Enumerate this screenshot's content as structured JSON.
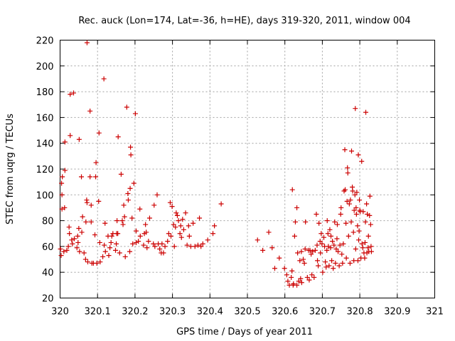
{
  "chart_data": {
    "type": "scatter",
    "title": "Rec. auck (Lon=174, Lat=-36, h=HE), days 319-320, 2011, window 004",
    "xlabel": "GPS time / Days of year 2011",
    "ylabel": "STEC from uqrg / TECUs",
    "xlim": [
      320,
      321
    ],
    "ylim": [
      20,
      220
    ],
    "xticks": [
      320,
      320.1,
      320.2,
      320.3,
      320.4,
      320.5,
      320.6,
      320.7,
      320.8,
      320.9,
      321
    ],
    "xtick_labels": [
      "320",
      "320.1",
      "320.2",
      "320.3",
      "320.4",
      "320.5",
      "320.6",
      "320.7",
      "320.8",
      "320.9",
      "321"
    ],
    "yticks": [
      20,
      40,
      60,
      80,
      100,
      120,
      140,
      160,
      180,
      200,
      220
    ],
    "ytick_labels": [
      "20",
      "40",
      "60",
      "80",
      "100",
      "120",
      "140",
      "160",
      "180",
      "200",
      "220"
    ],
    "grid": true,
    "marker": "+",
    "color": "#cc0000",
    "series": [
      {
        "points": [
          [
            320.001,
            58
          ],
          [
            320.003,
            53
          ],
          [
            320.005,
            100
          ],
          [
            320.004,
            109
          ],
          [
            320.006,
            114
          ],
          [
            320.005,
            89
          ],
          [
            320.01,
            56
          ],
          [
            320.012,
            90
          ],
          [
            320.013,
            141
          ],
          [
            320.013,
            119
          ],
          [
            320.018,
            57
          ],
          [
            320.022,
            60
          ],
          [
            320.024,
            75
          ],
          [
            320.025,
            70
          ],
          [
            320.027,
            146
          ],
          [
            320.027,
            178
          ],
          [
            320.031,
            65
          ],
          [
            320.033,
            62
          ],
          [
            320.036,
            179
          ],
          [
            320.038,
            66
          ],
          [
            320.045,
            59
          ],
          [
            320.047,
            68
          ],
          [
            320.048,
            63
          ],
          [
            320.05,
            74
          ],
          [
            320.051,
            143
          ],
          [
            320.052,
            56
          ],
          [
            320.057,
            114
          ],
          [
            320.058,
            71
          ],
          [
            320.06,
            83
          ],
          [
            320.064,
            55
          ],
          [
            320.068,
            50
          ],
          [
            320.069,
            79
          ],
          [
            320.071,
            96
          ],
          [
            320.072,
            94
          ],
          [
            320.072,
            218
          ],
          [
            320.074,
            48
          ],
          [
            320.08,
            114
          ],
          [
            320.08,
            165
          ],
          [
            320.083,
            79
          ],
          [
            320.083,
            92
          ],
          [
            320.085,
            47
          ],
          [
            320.089,
            47
          ],
          [
            320.093,
            69
          ],
          [
            320.095,
            114
          ],
          [
            320.096,
            125
          ],
          [
            320.098,
            47
          ],
          [
            320.103,
            95
          ],
          [
            320.104,
            148
          ],
          [
            320.106,
            63
          ],
          [
            320.107,
            48
          ],
          [
            320.114,
            52
          ],
          [
            320.117,
            190
          ],
          [
            320.118,
            61
          ],
          [
            320.12,
            78
          ],
          [
            320.121,
            56
          ],
          [
            320.128,
            68
          ],
          [
            320.13,
            53
          ],
          [
            320.133,
            59
          ],
          [
            320.136,
            63
          ],
          [
            320.138,
            68
          ],
          [
            320.141,
            70
          ],
          [
            320.148,
            57
          ],
          [
            320.15,
            62
          ],
          [
            320.151,
            70
          ],
          [
            320.152,
            80
          ],
          [
            320.154,
            70
          ],
          [
            320.155,
            145
          ],
          [
            320.159,
            55
          ],
          [
            320.163,
            116
          ],
          [
            320.166,
            80
          ],
          [
            320.168,
            77
          ],
          [
            320.17,
            92
          ],
          [
            320.172,
            83
          ],
          [
            320.174,
            52
          ],
          [
            320.178,
            168
          ],
          [
            320.181,
            101
          ],
          [
            320.182,
            96
          ],
          [
            320.186,
            56
          ],
          [
            320.187,
            105
          ],
          [
            320.188,
            137
          ],
          [
            320.189,
            131
          ],
          [
            320.192,
            82
          ],
          [
            320.194,
            62
          ],
          [
            320.197,
            109
          ],
          [
            320.201,
            163
          ],
          [
            320.203,
            72
          ],
          [
            320.203,
            63
          ],
          [
            320.209,
            64
          ],
          [
            320.213,
            89
          ],
          [
            320.214,
            68
          ],
          [
            320.223,
            61
          ],
          [
            320.225,
            70
          ],
          [
            320.228,
            77
          ],
          [
            320.23,
            71
          ],
          [
            320.232,
            59
          ],
          [
            320.236,
            64
          ],
          [
            320.239,
            82
          ],
          [
            320.249,
            62
          ],
          [
            320.251,
            92
          ],
          [
            320.253,
            60
          ],
          [
            320.259,
            100
          ],
          [
            320.262,
            62
          ],
          [
            320.266,
            58
          ],
          [
            320.27,
            55
          ],
          [
            320.272,
            62
          ],
          [
            320.276,
            55
          ],
          [
            320.28,
            60
          ],
          [
            320.287,
            64
          ],
          [
            320.29,
            70
          ],
          [
            320.294,
            94
          ],
          [
            320.296,
            68
          ],
          [
            320.299,
            91
          ],
          [
            320.303,
            77
          ],
          [
            320.305,
            60
          ],
          [
            320.308,
            75
          ],
          [
            320.31,
            86
          ],
          [
            320.313,
            84
          ],
          [
            320.316,
            80
          ],
          [
            320.32,
            70
          ],
          [
            320.322,
            76
          ],
          [
            320.324,
            67
          ],
          [
            320.327,
            81
          ],
          [
            320.33,
            73
          ],
          [
            320.335,
            86
          ],
          [
            320.339,
            61
          ],
          [
            320.343,
            76
          ],
          [
            320.345,
            68
          ],
          [
            320.349,
            60
          ],
          [
            320.355,
            78
          ],
          [
            320.36,
            60
          ],
          [
            320.368,
            61
          ],
          [
            320.372,
            82
          ],
          [
            320.376,
            60
          ],
          [
            320.381,
            62
          ],
          [
            320.394,
            65
          ],
          [
            320.408,
            70
          ],
          [
            320.412,
            76
          ],
          [
            320.43,
            93
          ],
          [
            320.527,
            65
          ],
          [
            320.541,
            57
          ],
          [
            320.557,
            71
          ],
          [
            320.566,
            59
          ],
          [
            320.573,
            43
          ],
          [
            320.585,
            51
          ],
          [
            320.599,
            43
          ],
          [
            320.605,
            38
          ],
          [
            320.608,
            33
          ],
          [
            320.612,
            30
          ],
          [
            320.617,
            36
          ],
          [
            320.619,
            41
          ],
          [
            320.62,
            104
          ],
          [
            320.622,
            30
          ],
          [
            320.623,
            31
          ],
          [
            320.626,
            68
          ],
          [
            320.628,
            79
          ],
          [
            320.632,
            90
          ],
          [
            320.632,
            30
          ],
          [
            320.634,
            55
          ],
          [
            320.637,
            33
          ],
          [
            320.64,
            49
          ],
          [
            320.642,
            35
          ],
          [
            320.644,
            56
          ],
          [
            320.645,
            32
          ],
          [
            320.649,
            50
          ],
          [
            320.652,
            47
          ],
          [
            320.654,
            58
          ],
          [
            320.655,
            79
          ],
          [
            320.66,
            36
          ],
          [
            320.663,
            57
          ],
          [
            320.665,
            34
          ],
          [
            320.667,
            57
          ],
          [
            320.67,
            54
          ],
          [
            320.672,
            38
          ],
          [
            320.674,
            56
          ],
          [
            320.678,
            36
          ],
          [
            320.681,
            57
          ],
          [
            320.684,
            85
          ],
          [
            320.686,
            61
          ],
          [
            320.687,
            49
          ],
          [
            320.689,
            45
          ],
          [
            320.691,
            78
          ],
          [
            320.694,
            64
          ],
          [
            320.695,
            55
          ],
          [
            320.697,
            70
          ],
          [
            320.699,
            62
          ],
          [
            320.701,
            40
          ],
          [
            320.704,
            67
          ],
          [
            320.706,
            60
          ],
          [
            320.708,
            48
          ],
          [
            320.71,
            44
          ],
          [
            320.712,
            57
          ],
          [
            320.713,
            80
          ],
          [
            320.715,
            70
          ],
          [
            320.716,
            60
          ],
          [
            320.718,
            45
          ],
          [
            320.72,
            73
          ],
          [
            320.722,
            59
          ],
          [
            320.723,
            68
          ],
          [
            320.725,
            49
          ],
          [
            320.727,
            64
          ],
          [
            320.729,
            43
          ],
          [
            320.731,
            61
          ],
          [
            320.733,
            79
          ],
          [
            320.735,
            47
          ],
          [
            320.737,
            58
          ],
          [
            320.739,
            66
          ],
          [
            320.74,
            77
          ],
          [
            320.742,
            56
          ],
          [
            320.745,
            45
          ],
          [
            320.747,
            61
          ],
          [
            320.749,
            85
          ],
          [
            320.75,
            90
          ],
          [
            320.752,
            54
          ],
          [
            320.754,
            47
          ],
          [
            320.756,
            62
          ],
          [
            320.758,
            103
          ],
          [
            320.76,
            135
          ],
          [
            320.761,
            104
          ],
          [
            320.763,
            78
          ],
          [
            320.764,
            51
          ],
          [
            320.766,
            95
          ],
          [
            320.767,
            121
          ],
          [
            320.768,
            117
          ],
          [
            320.77,
            68
          ],
          [
            320.772,
            93
          ],
          [
            320.774,
            47
          ],
          [
            320.775,
            96
          ],
          [
            320.777,
            79
          ],
          [
            320.778,
            134
          ],
          [
            320.78,
            106
          ],
          [
            320.781,
            103
          ],
          [
            320.783,
            71
          ],
          [
            320.784,
            49
          ],
          [
            320.785,
            88
          ],
          [
            320.787,
            100
          ],
          [
            320.788,
            167
          ],
          [
            320.789,
            58
          ],
          [
            320.79,
            90
          ],
          [
            320.791,
            85
          ],
          [
            320.792,
            102
          ],
          [
            320.794,
            76
          ],
          [
            320.795,
            49
          ],
          [
            320.796,
            131
          ],
          [
            320.797,
            65
          ],
          [
            320.798,
            72
          ],
          [
            320.799,
            96
          ],
          [
            320.8,
            88
          ],
          [
            320.801,
            87
          ],
          [
            320.803,
            51
          ],
          [
            320.805,
            126
          ],
          [
            320.806,
            62
          ],
          [
            320.808,
            59
          ],
          [
            320.809,
            87
          ],
          [
            320.811,
            55
          ],
          [
            320.813,
            51
          ],
          [
            320.814,
            63
          ],
          [
            320.815,
            79
          ],
          [
            320.816,
            164
          ],
          [
            320.818,
            93
          ],
          [
            320.819,
            55
          ],
          [
            320.82,
            85
          ],
          [
            320.822,
            59
          ],
          [
            320.823,
            68
          ],
          [
            320.824,
            56
          ],
          [
            320.826,
            84
          ],
          [
            320.827,
            99
          ],
          [
            320.829,
            77
          ],
          [
            320.83,
            60
          ],
          [
            320.831,
            56
          ]
        ]
      }
    ]
  }
}
